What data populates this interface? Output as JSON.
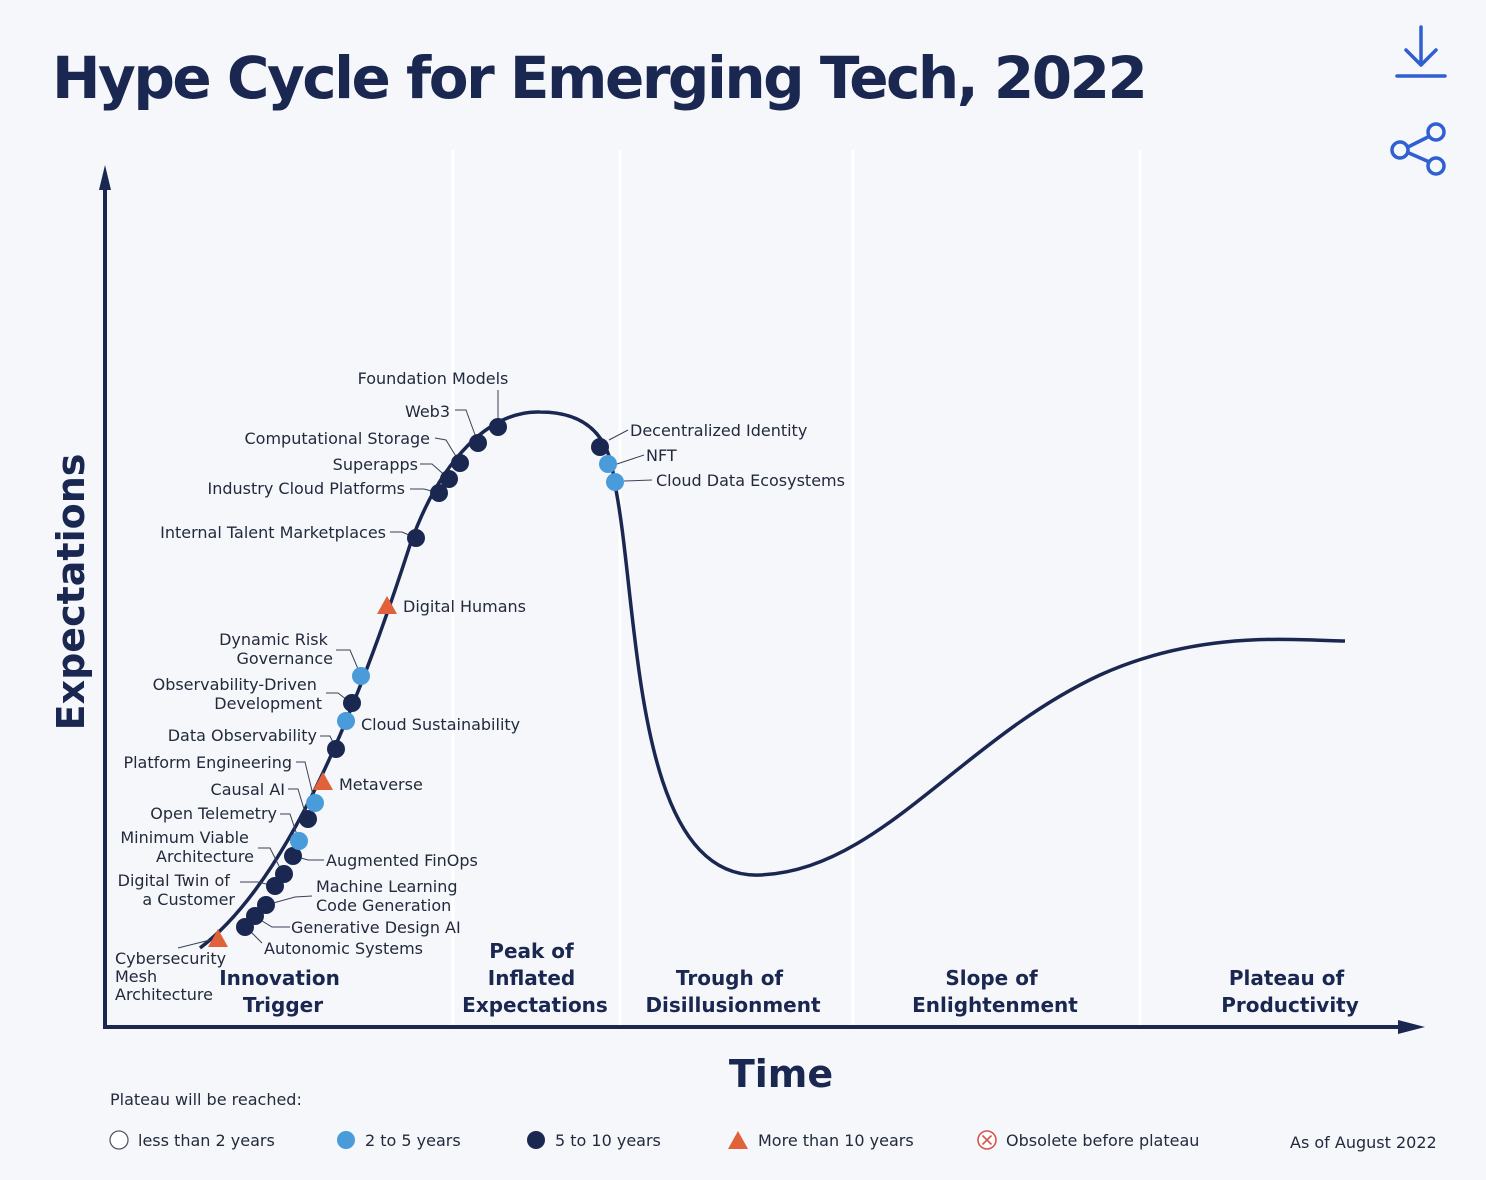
{
  "title": "Hype Cycle for Emerging Tech, 2022",
  "actions": {
    "download_icon": "download-icon",
    "share_icon": "share-icon"
  },
  "colors": {
    "navy": "#1a2750",
    "light_blue": "#4a9bd9",
    "orange": "#e0613a",
    "red": "#d9534f",
    "accent_blue": "#2f5fd0"
  },
  "chart_data": {
    "type": "diagram",
    "y_axis_label": "Expectations",
    "x_axis_label": "Time",
    "phases": [
      {
        "lines": [
          "Innovation",
          "Trigger"
        ]
      },
      {
        "lines": [
          "Peak of",
          "Inflated",
          "Expectations"
        ]
      },
      {
        "lines": [
          "Trough of",
          "Disillusionment"
        ]
      },
      {
        "lines": [
          "Slope of",
          "Enlightenment"
        ]
      },
      {
        "lines": [
          "Plateau of",
          "Productivity"
        ]
      }
    ],
    "technologies": [
      {
        "name": [
          "Cybersecurity",
          "Mesh",
          "Architecture"
        ],
        "category": "More than 10 years"
      },
      {
        "name": [
          "Autonomic Systems"
        ],
        "category": "5 to 10 years"
      },
      {
        "name": [
          "Generative Design AI"
        ],
        "category": "5 to 10 years"
      },
      {
        "name": [
          "Machine Learning",
          "Code Generation"
        ],
        "category": "5 to 10 years"
      },
      {
        "name": [
          "Digital Twin of",
          "a Customer"
        ],
        "category": "5 to 10 years"
      },
      {
        "name": [
          "Augmented FinOps"
        ],
        "category": "5 to 10 years"
      },
      {
        "name": [
          "Minimum Viable",
          "Architecture"
        ],
        "category": "5 to 10 years"
      },
      {
        "name": [
          "Open Telemetry"
        ],
        "category": "2 to 5 years"
      },
      {
        "name": [
          "Causal AI"
        ],
        "category": "5 to 10 years"
      },
      {
        "name": [
          "Platform Engineering"
        ],
        "category": "2 to 5 years"
      },
      {
        "name": [
          "Metaverse"
        ],
        "category": "More than 10 years"
      },
      {
        "name": [
          "Data Observability"
        ],
        "category": "5 to 10 years"
      },
      {
        "name": [
          "Cloud Sustainability"
        ],
        "category": "2 to 5 years"
      },
      {
        "name": [
          "Observability-Driven",
          "Development"
        ],
        "category": "5 to 10 years"
      },
      {
        "name": [
          "Dynamic Risk",
          "Governance"
        ],
        "category": "2 to 5 years"
      },
      {
        "name": [
          "Digital Humans"
        ],
        "category": "More than 10 years"
      },
      {
        "name": [
          "Internal Talent Marketplaces"
        ],
        "category": "5 to 10 years"
      },
      {
        "name": [
          "Industry Cloud Platforms"
        ],
        "category": "5 to 10 years"
      },
      {
        "name": [
          "Superapps"
        ],
        "category": "5 to 10 years"
      },
      {
        "name": [
          "Computational Storage"
        ],
        "category": "5 to 10 years"
      },
      {
        "name": [
          "Web3"
        ],
        "category": "5 to 10 years"
      },
      {
        "name": [
          "Foundation Models"
        ],
        "category": "5 to 10 years"
      },
      {
        "name": [
          "Decentralized Identity"
        ],
        "category": "5 to 10 years"
      },
      {
        "name": [
          "NFT"
        ],
        "category": "2 to 5 years"
      },
      {
        "name": [
          "Cloud Data Ecosystems"
        ],
        "category": "2 to 5 years"
      }
    ]
  },
  "legend": {
    "title": "Plateau will be reached:",
    "items": [
      {
        "label": "less than 2 years",
        "symbol": "hollow-circle"
      },
      {
        "label": "2 to 5 years",
        "symbol": "light-blue-circle"
      },
      {
        "label": "5 to 10 years",
        "symbol": "navy-circle"
      },
      {
        "label": "More than 10 years",
        "symbol": "orange-triangle"
      },
      {
        "label": "Obsolete before plateau",
        "symbol": "crossed-circle"
      }
    ]
  },
  "as_of": "As of August 2022"
}
